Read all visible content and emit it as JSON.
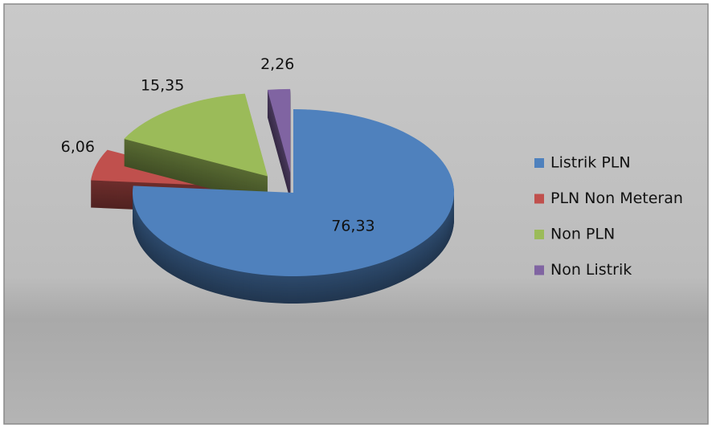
{
  "chart_data": {
    "type": "pie",
    "categories": [
      "Listrik PLN",
      "PLN Non Meteran",
      "Non PLN",
      "Non Listrik"
    ],
    "values": [
      76.33,
      6.06,
      15.35,
      2.26
    ],
    "value_labels": [
      "76,33",
      "6,06",
      "15,35",
      "2,26"
    ],
    "colors": [
      "#4f81bd",
      "#c0504d",
      "#9bbb59",
      "#8064a2"
    ],
    "legend": "right"
  }
}
